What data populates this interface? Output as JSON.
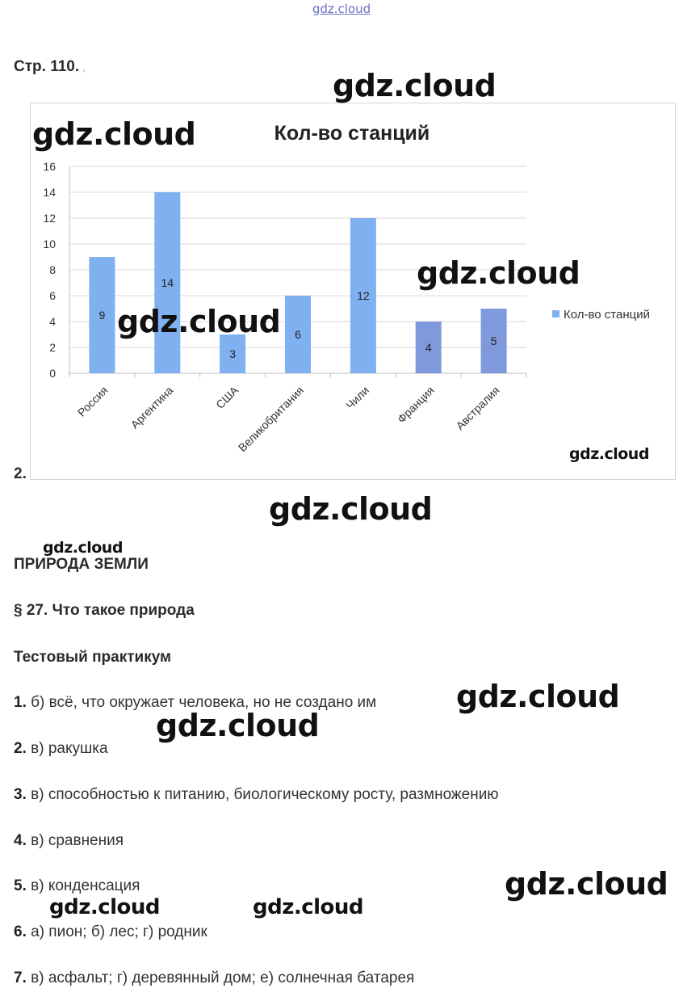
{
  "watermark": "gdz.cloud",
  "page_ref": "Стр. 110.",
  "page_ref_tail": ",",
  "item_number": "2.",
  "chart_data": {
    "type": "bar",
    "title": "Кол-во станций",
    "categories": [
      "Россия",
      "Аргентина",
      "США",
      "Великобритания",
      "Чили",
      "Франция",
      "Австралия"
    ],
    "series": [
      {
        "name": "Кол-во станций",
        "values": [
          9,
          14,
          3,
          6,
          12,
          4,
          5
        ]
      }
    ],
    "ylim": [
      0,
      16
    ],
    "yticks": [
      0,
      2,
      4,
      6,
      8,
      10,
      12,
      14,
      16
    ],
    "grid": true,
    "data_labels": true,
    "legend": "right",
    "colors": {
      "bar": "#7fb0f0",
      "bar_dark": "#7f99dc",
      "grid": "#d9d9d9"
    }
  },
  "sections": {
    "part": "ПРИРОДА ЗЕМЛИ",
    "paragraph": "§ 27. Что такое природа",
    "practicum": "Тестовый практикум"
  },
  "answers": [
    {
      "num": "1.",
      "text": " б) всё, что окружает человека, но не создано им"
    },
    {
      "num": "2.",
      "text": " в) ракушка"
    },
    {
      "num": "3.",
      "text": " в) способностью к питанию, биологическому росту, размножению"
    },
    {
      "num": "4.",
      "text": " в) сравнения"
    },
    {
      "num": "5.",
      "text": " в) конденсация"
    },
    {
      "num": "6.",
      "text": " а) пион; б) лес; г) родник"
    },
    {
      "num": "7.",
      "text": " в) асфальт; г) деревянный дом; е) солнечная батарея"
    }
  ]
}
